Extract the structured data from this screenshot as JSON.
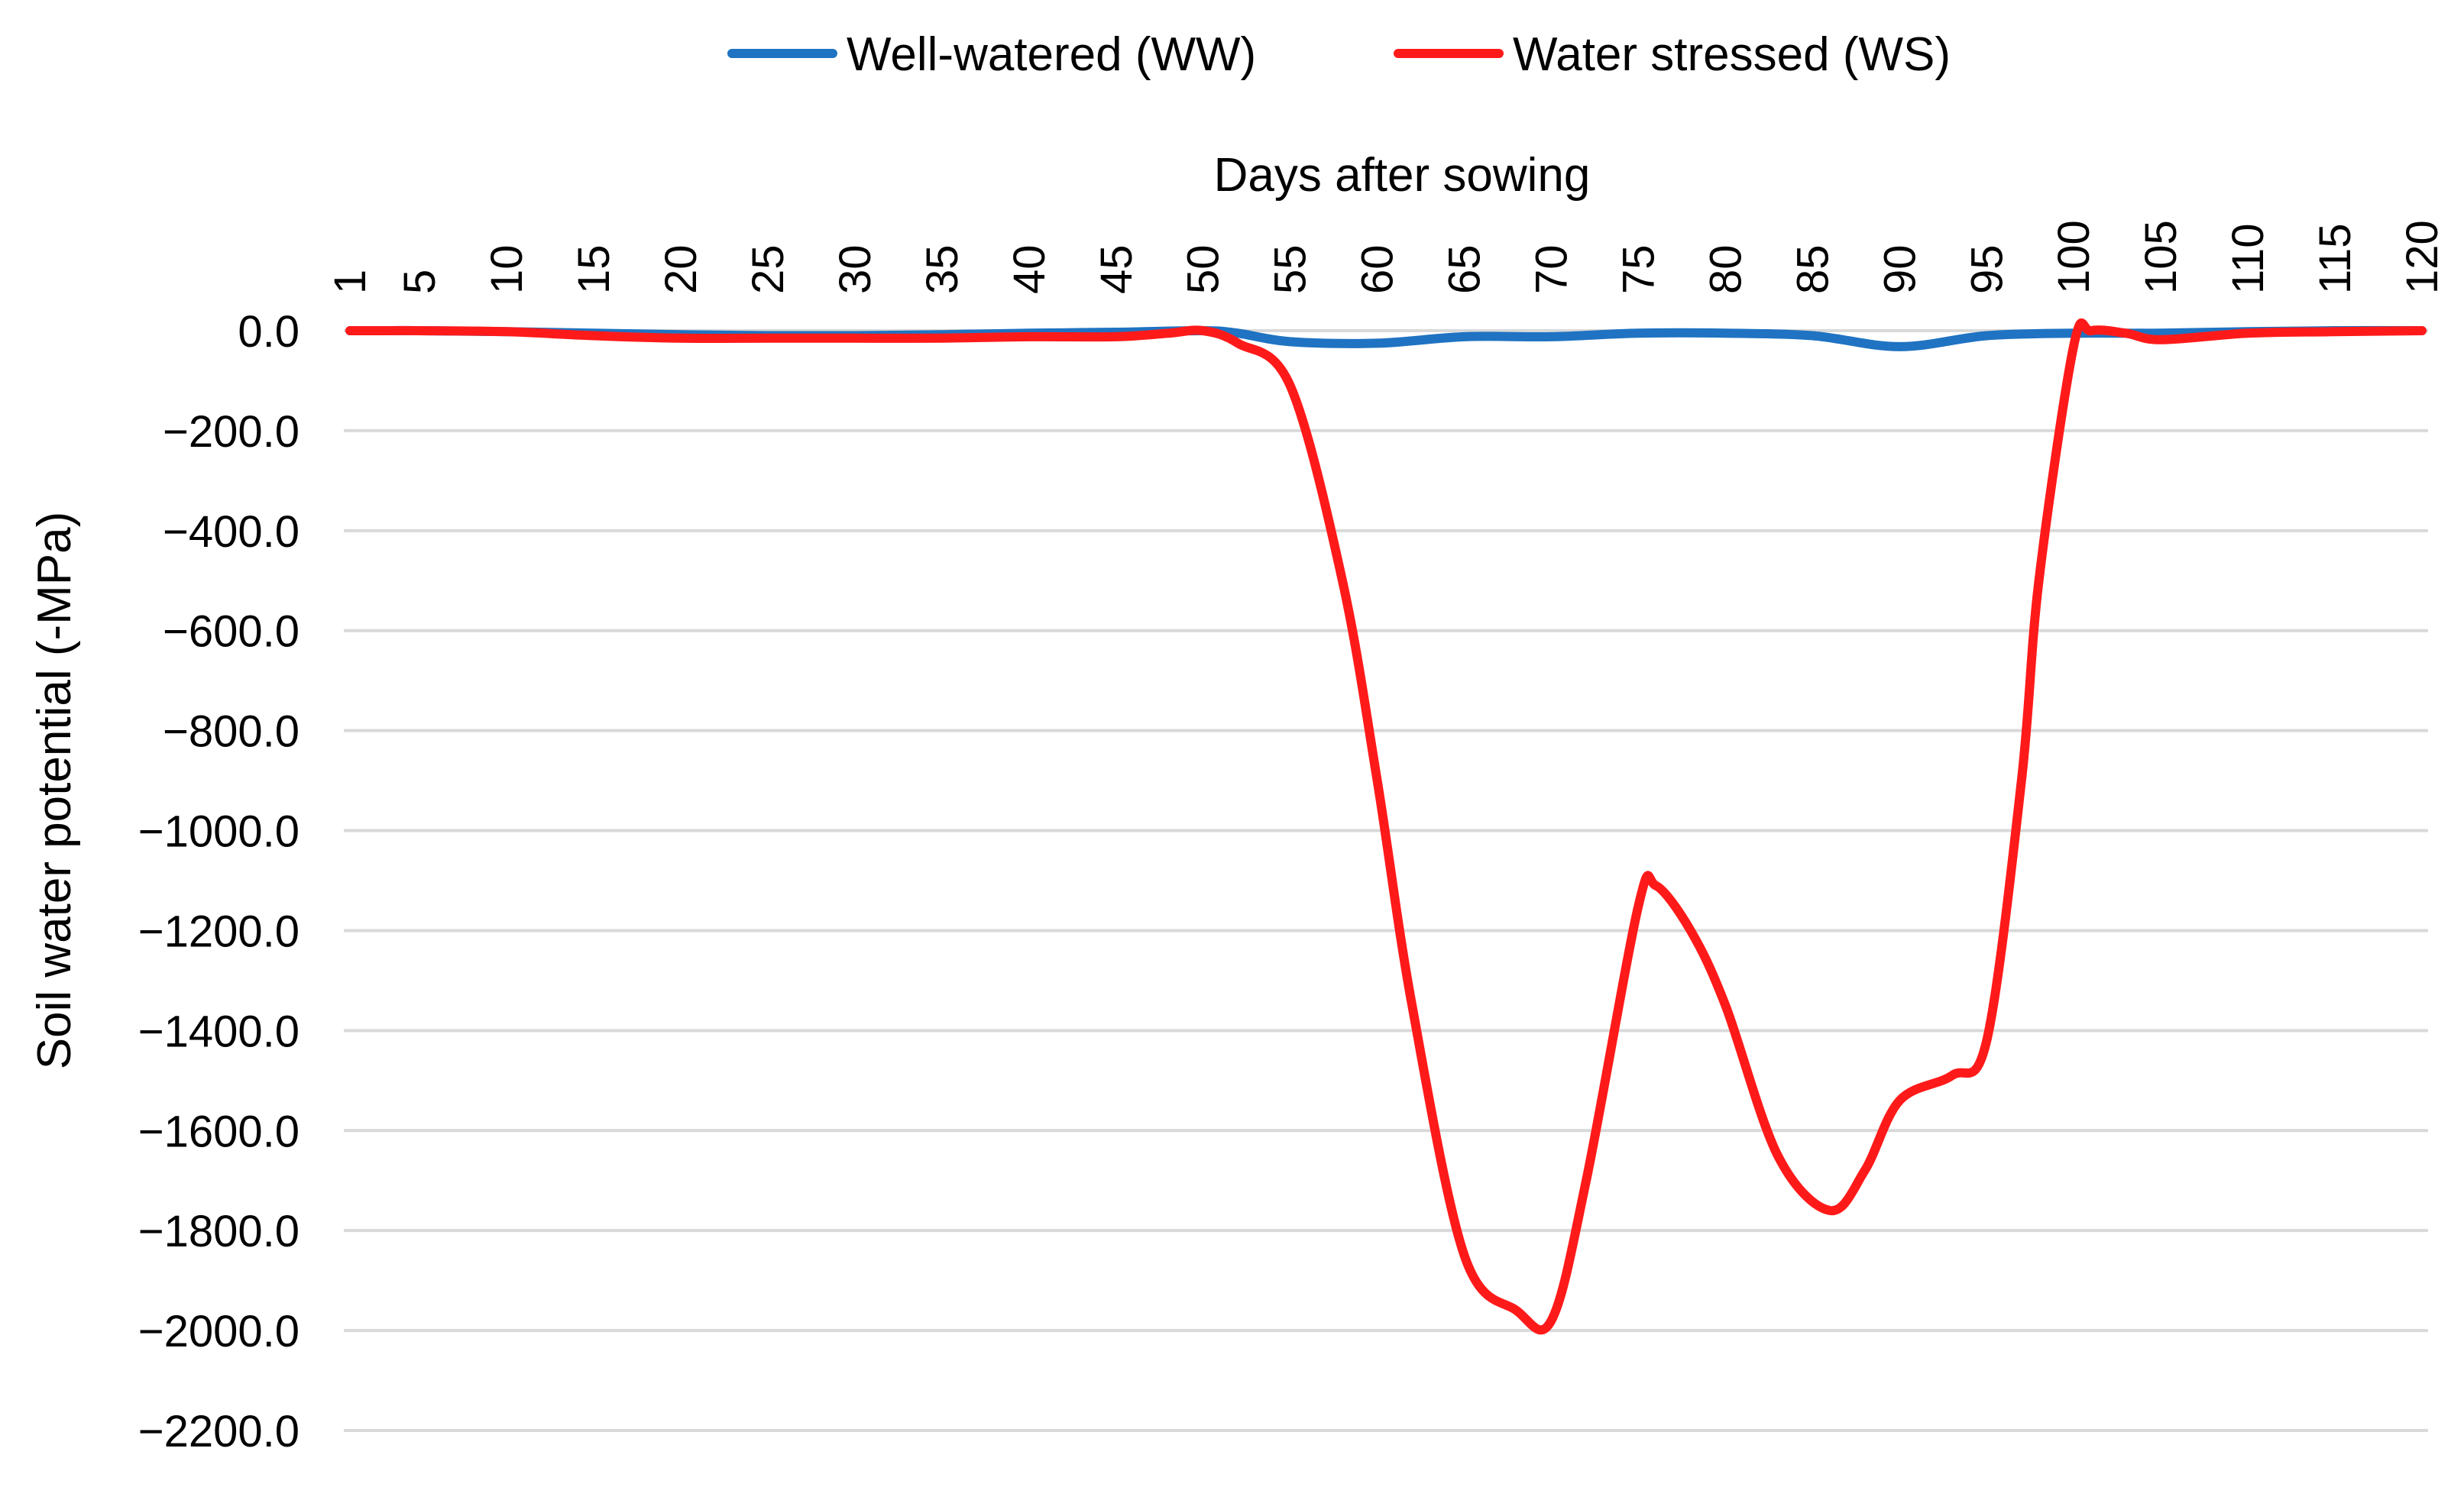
{
  "chart_data": {
    "type": "line",
    "title": "",
    "xlabel": "Days after sowing",
    "ylabel": "Soil water potential  (-MPa)",
    "x_axis_position": "top",
    "xlim": [
      1,
      120
    ],
    "ylim": [
      -2200,
      0
    ],
    "x_ticks": [
      1,
      5,
      10,
      15,
      20,
      25,
      30,
      35,
      40,
      45,
      50,
      55,
      60,
      65,
      70,
      75,
      80,
      85,
      90,
      95,
      100,
      105,
      110,
      115,
      120
    ],
    "x_tick_labels": [
      "1",
      "5",
      "10",
      "15",
      "20",
      "25",
      "30",
      "35",
      "40",
      "45",
      "50",
      "55",
      "60",
      "65",
      "70",
      "75",
      "80",
      "85",
      "90",
      "95",
      "100",
      "105",
      "110",
      "115",
      "120"
    ],
    "y_ticks": [
      0,
      -200,
      -400,
      -600,
      -800,
      -1000,
      -1200,
      -1400,
      -1600,
      -1800,
      -2000,
      -2200
    ],
    "y_tick_labels": [
      "0.0",
      "−200.0",
      "−400.0",
      "−600.0",
      "−800.0",
      "−1000.0",
      "−1200.0",
      "−1400.0",
      "−1600.0",
      "−1800.0",
      "−2000.0",
      "−2200.0"
    ],
    "grid": "horizontal",
    "legend_position": "top",
    "series": [
      {
        "name": "Well-watered (WW)",
        "color": "#1f73c2",
        "x": [
          1,
          5,
          10,
          15,
          20,
          25,
          30,
          35,
          40,
          45,
          50,
          52,
          55,
          60,
          65,
          70,
          75,
          80,
          85,
          90,
          95,
          100,
          105,
          110,
          115,
          120
        ],
        "values": [
          0,
          0,
          -2,
          -5,
          -8,
          -10,
          -10,
          -8,
          -5,
          -3,
          0,
          -5,
          -22,
          -25,
          -12,
          -12,
          -5,
          -5,
          -10,
          -32,
          -10,
          -5,
          -5,
          -2,
          0,
          0
        ]
      },
      {
        "name": "Water stressed (WS)",
        "color": "#ff1a1a",
        "x": [
          1,
          5,
          10,
          15,
          20,
          25,
          30,
          35,
          40,
          45,
          48,
          50,
          52,
          55,
          58,
          60,
          62,
          65,
          68,
          70,
          72,
          75,
          76,
          78,
          80,
          83,
          86,
          88,
          90,
          93,
          95,
          97,
          98,
          100,
          101,
          103,
          105,
          110,
          115,
          120
        ],
        "values": [
          0,
          0,
          -2,
          -10,
          -15,
          -15,
          -15,
          -15,
          -12,
          -12,
          -5,
          0,
          -25,
          -110,
          -500,
          -900,
          -1350,
          -1850,
          -1960,
          -1980,
          -1700,
          -1150,
          -1110,
          -1200,
          -1350,
          -1650,
          -1760,
          -1680,
          -1540,
          -1490,
          -1420,
          -900,
          -500,
          -30,
          0,
          -5,
          -18,
          -5,
          -2,
          0
        ]
      }
    ]
  }
}
